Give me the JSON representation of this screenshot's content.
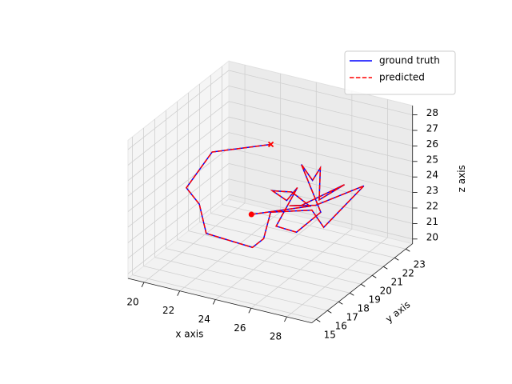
{
  "chart_data": {
    "type": "line3d",
    "xlabel": "x axis",
    "ylabel": "y axis",
    "zlabel": "z axis",
    "xlim": [
      19.1,
      29.4
    ],
    "ylim": [
      14.6,
      23.6
    ],
    "zlim": [
      19.7,
      28.6
    ],
    "xticks": [
      20,
      22,
      24,
      26,
      28
    ],
    "yticks": [
      15,
      16,
      17,
      18,
      19,
      20,
      21,
      22,
      23
    ],
    "zticks": [
      20,
      21,
      22,
      23,
      24,
      25,
      26,
      27,
      28
    ],
    "grid": true,
    "legend": "upper right",
    "series": [
      {
        "name": "ground truth",
        "color": "#0000ff",
        "linestyle": "solid",
        "x": [
          22.0,
          24.9,
          24.2,
          23.3,
          23.6,
          24.2,
          23.7,
          24.9,
          25.7,
          24.8,
          25.3,
          25.8,
          25.8,
          26.9,
          24.5,
          24.0,
          25.1,
          27.8,
          25.8,
          25.2,
          22.7,
          23.0,
          23.0,
          21.1,
          20.9,
          20.3,
          20.3,
          22.4
        ],
        "y": [
          21.0,
          21.6,
          21.1,
          20.8,
          21.6,
          21.6,
          20.5,
          20.4,
          21.3,
          21.0,
          21.2,
          21.1,
          21.0,
          21.5,
          21.5,
          21.2,
          21.8,
          21.8,
          21.4,
          21.3,
          21.6,
          20.5,
          19.5,
          18.4,
          18.1,
          17.9,
          20.2,
          22.1
        ],
        "z": [
          21,
          22,
          23,
          23,
          22,
          23,
          21,
          21,
          22,
          25,
          24,
          25,
          23,
          24,
          22,
          22,
          22,
          24,
          21,
          22,
          21,
          20,
          20,
          21,
          23,
          24,
          25,
          25
        ]
      },
      {
        "name": "predicted",
        "color": "#ff0000",
        "linestyle": "dashed",
        "start_marker": "o",
        "end_marker": "x",
        "x": [
          22.0,
          24.9,
          24.2,
          23.3,
          23.6,
          24.2,
          23.7,
          24.9,
          25.7,
          24.8,
          25.3,
          25.8,
          25.8,
          26.9,
          24.5,
          24.0,
          25.1,
          27.8,
          25.8,
          25.2,
          22.7,
          23.0,
          23.0,
          21.1,
          20.9,
          20.3,
          20.3,
          22.4
        ],
        "y": [
          21.0,
          21.6,
          21.1,
          20.8,
          21.6,
          21.6,
          20.5,
          20.4,
          21.3,
          21.0,
          21.2,
          21.1,
          21.0,
          21.5,
          21.5,
          21.2,
          21.8,
          21.8,
          21.4,
          21.3,
          21.6,
          20.5,
          19.5,
          18.4,
          18.1,
          17.9,
          20.2,
          22.1
        ],
        "z": [
          21,
          22,
          23,
          23,
          22,
          23,
          21,
          21,
          22,
          25,
          24,
          25,
          23,
          24,
          22,
          22,
          22,
          24,
          21,
          22,
          21,
          20,
          20,
          21,
          23,
          24,
          25,
          25
        ]
      }
    ]
  }
}
